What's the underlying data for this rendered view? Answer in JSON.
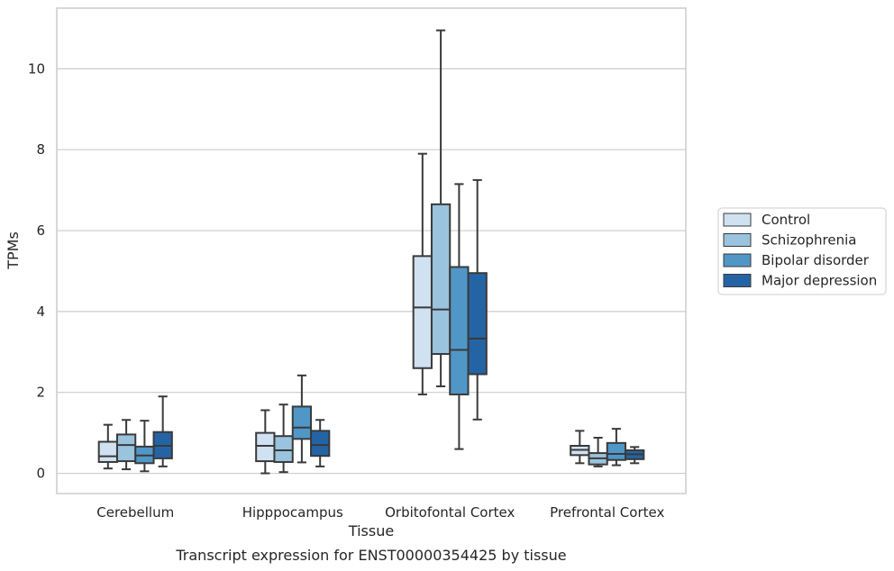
{
  "chart_data": {
    "type": "box",
    "title": "",
    "caption": "Transcript expression for ENST00000354425 by tissue",
    "xlabel": "Tissue",
    "ylabel": "TPMs",
    "ylim": [
      -0.5,
      11.5
    ],
    "yticks": [
      0,
      2,
      4,
      6,
      8,
      10
    ],
    "grid": true,
    "legend_position": "right",
    "categories": [
      "Cerebellum",
      "Hipppocampus",
      "Orbitofontal Cortex",
      "Prefrontal Cortex"
    ],
    "series": [
      {
        "name": "Control",
        "color": "#d0e1f2",
        "boxes": [
          {
            "whislo": 0.12,
            "q1": 0.28,
            "med": 0.42,
            "q3": 0.78,
            "whishi": 1.2
          },
          {
            "whislo": 0.0,
            "q1": 0.3,
            "med": 0.68,
            "q3": 1.0,
            "whishi": 1.56
          },
          {
            "whislo": 1.95,
            "q1": 2.6,
            "med": 4.1,
            "q3": 5.37,
            "whishi": 7.9
          },
          {
            "whislo": 0.25,
            "q1": 0.45,
            "med": 0.58,
            "q3": 0.68,
            "whishi": 1.05
          }
        ]
      },
      {
        "name": "Schizophrenia",
        "color": "#9ac3dd",
        "boxes": [
          {
            "whislo": 0.1,
            "q1": 0.3,
            "med": 0.7,
            "q3": 0.96,
            "whishi": 1.32
          },
          {
            "whislo": 0.03,
            "q1": 0.28,
            "med": 0.57,
            "q3": 0.92,
            "whishi": 1.7
          },
          {
            "whislo": 2.15,
            "q1": 2.95,
            "med": 4.05,
            "q3": 6.65,
            "whishi": 10.95
          },
          {
            "whislo": 0.17,
            "q1": 0.22,
            "med": 0.37,
            "q3": 0.5,
            "whishi": 0.88
          }
        ]
      },
      {
        "name": "Bipolar disorder",
        "color": "#5097c8",
        "boxes": [
          {
            "whislo": 0.05,
            "q1": 0.25,
            "med": 0.44,
            "q3": 0.66,
            "whishi": 1.3
          },
          {
            "whislo": 0.27,
            "q1": 0.85,
            "med": 1.13,
            "q3": 1.65,
            "whishi": 2.42
          },
          {
            "whislo": 0.6,
            "q1": 1.95,
            "med": 3.05,
            "q3": 5.1,
            "whishi": 7.15
          },
          {
            "whislo": 0.2,
            "q1": 0.33,
            "med": 0.48,
            "q3": 0.75,
            "whishi": 1.1
          }
        ]
      },
      {
        "name": "Major depression",
        "color": "#2464a5",
        "boxes": [
          {
            "whislo": 0.17,
            "q1": 0.37,
            "med": 0.68,
            "q3": 1.02,
            "whishi": 1.9
          },
          {
            "whislo": 0.17,
            "q1": 0.43,
            "med": 0.7,
            "q3": 1.05,
            "whishi": 1.32
          },
          {
            "whislo": 1.33,
            "q1": 2.45,
            "med": 3.33,
            "q3": 4.95,
            "whishi": 7.25
          },
          {
            "whislo": 0.25,
            "q1": 0.35,
            "med": 0.47,
            "q3": 0.57,
            "whishi": 0.65
          }
        ]
      }
    ]
  }
}
